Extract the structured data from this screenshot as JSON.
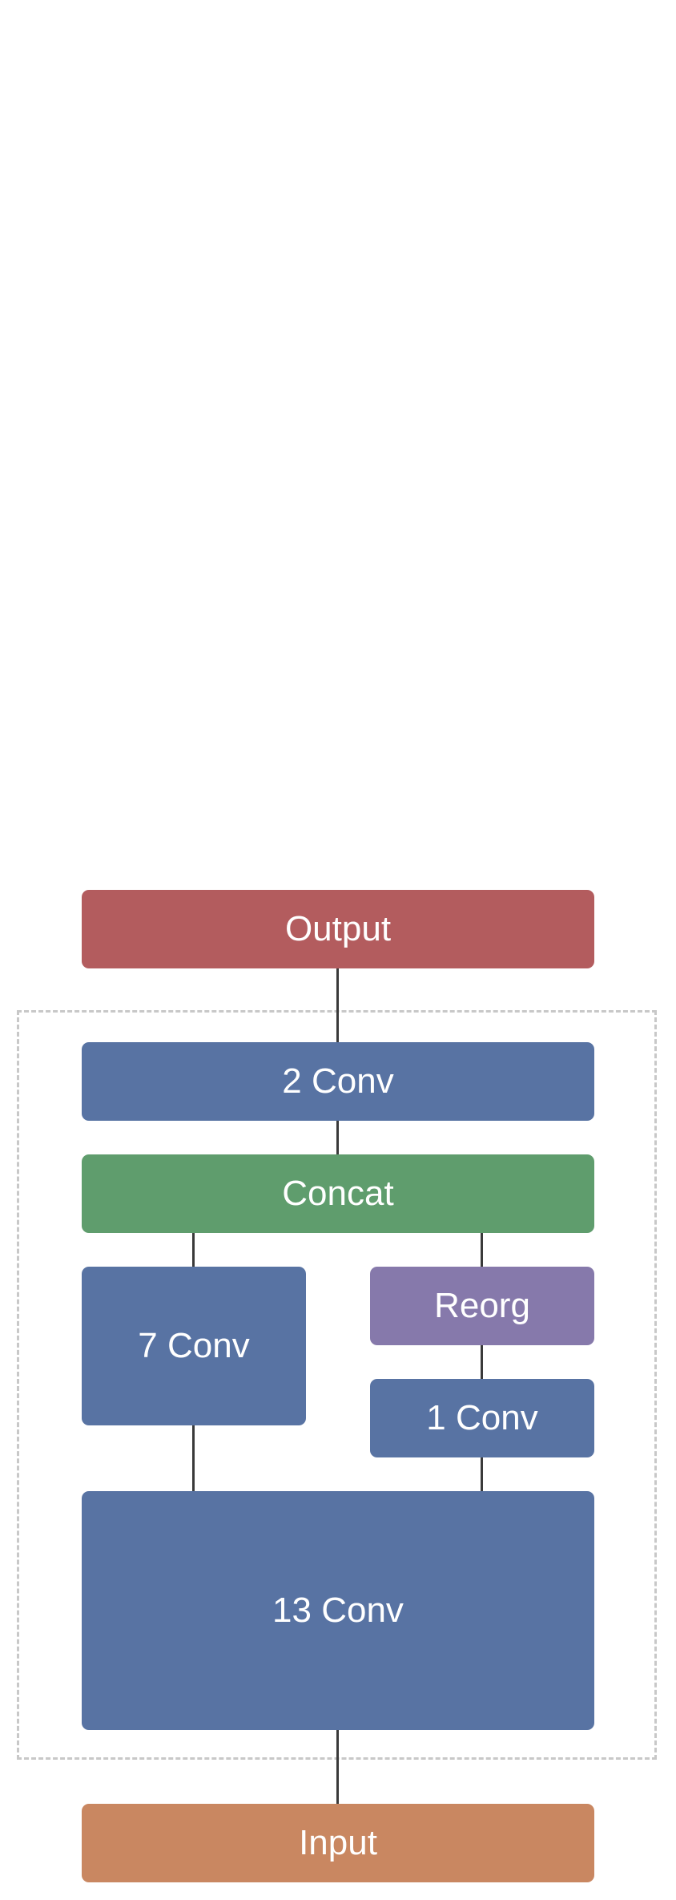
{
  "diagram": {
    "output": {
      "label": "Output",
      "color": "#b35c5e"
    },
    "conv2": {
      "label": "2 Conv",
      "color": "#5873a3"
    },
    "concat": {
      "label": "Concat",
      "color": "#5f9d6d"
    },
    "conv7": {
      "label": "7 Conv",
      "color": "#5873a3"
    },
    "reorg": {
      "label": "Reorg",
      "color": "#8679ab"
    },
    "conv1": {
      "label": "1 Conv",
      "color": "#5873a3"
    },
    "conv13": {
      "label": "13 Conv",
      "color": "#5873a3"
    },
    "input": {
      "label": "Input",
      "color": "#c98761"
    }
  }
}
